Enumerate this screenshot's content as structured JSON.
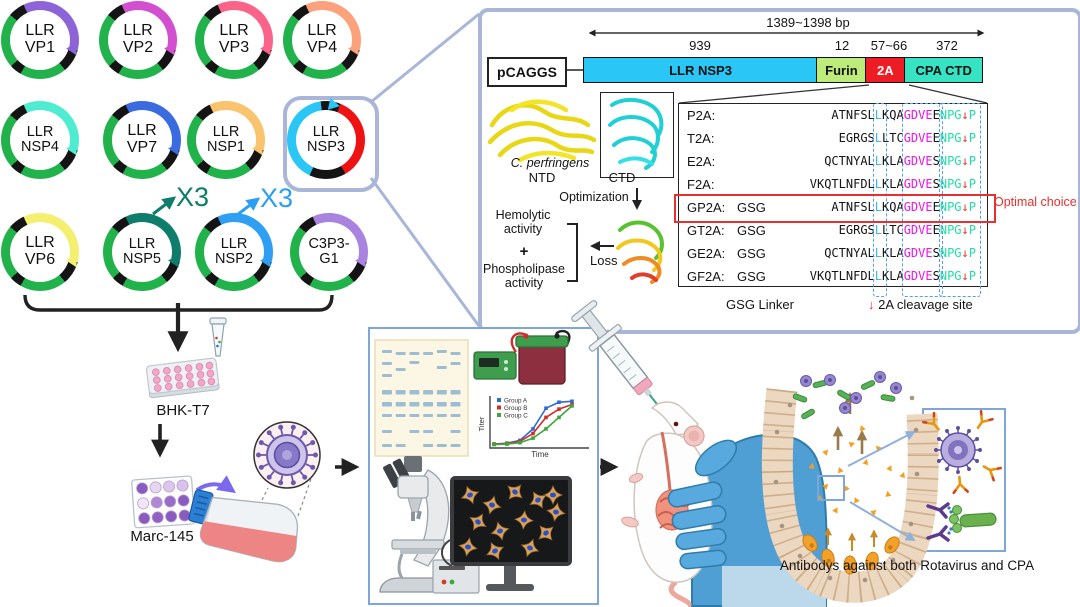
{
  "palette": {
    "callout_border": "#a9b6d8",
    "panel_border": "#7ea6d8",
    "plasmid_green": "#22b24c",
    "plasmid_black": "#141414",
    "optimal_red": "#e83030",
    "sequence_colors": {
      "black": "#141414",
      "blue": "#3db7f0",
      "magenta": "#ec13ec",
      "green": "#1fdfa6",
      "red": "#f22b2b"
    }
  },
  "plasmids": [
    {
      "line1": "LLR",
      "line2": "VP1",
      "accent": "#8d64d8"
    },
    {
      "line1": "LLR",
      "line2": "VP2",
      "accent": "#d24fd0"
    },
    {
      "line1": "LLR",
      "line2": "VP3",
      "accent": "#fb6488"
    },
    {
      "line1": "LLR",
      "line2": "VP4",
      "accent": "#fba17b"
    },
    {
      "line1": "LLR",
      "line2": "NSP4",
      "accent": "#50ecd2"
    },
    {
      "line1": "LLR",
      "line2": "VP7",
      "accent": "#3b6be0"
    },
    {
      "line1": "LLR",
      "line2": "NSP1",
      "accent": "#f9c46d"
    },
    {
      "line1": "LLR",
      "line2": "NSP3",
      "accent": "#29c6f6",
      "accent2": "#ee1212",
      "special": true
    },
    {
      "line1": "LLR",
      "line2": "VP6",
      "accent": "#f4ef6e"
    },
    {
      "line1": "LLR",
      "line2": "NSP5",
      "accent": "#0f7d6c"
    },
    {
      "line1": "LLR",
      "line2": "NSP2",
      "accent": "#2e9ff2"
    },
    {
      "line1": "C3P3-",
      "line2": "G1",
      "accent": "#a883e0"
    }
  ],
  "x3_annotations": [
    {
      "label": "X3",
      "color": "#0f7d6c"
    },
    {
      "label": "X3",
      "color": "#2b9ff2"
    }
  ],
  "construct": {
    "vector_label": "pCAGGS",
    "total_span_label": "1389~1398 bp",
    "segments": [
      {
        "label": "LLR NSP3",
        "size_label": "939",
        "color": "#29c6f6",
        "text_color": "#111111"
      },
      {
        "label": "Furin",
        "size_label": "12",
        "color": "#bdec7a",
        "text_color": "#111111"
      },
      {
        "label": "2A",
        "size_label": "57~66",
        "color": "#ee1c25",
        "text_color": "#ffffff"
      },
      {
        "label": "CPA CTD",
        "size_label": "372",
        "color": "#36e4c4",
        "text_color": "#111111"
      }
    ]
  },
  "protein_panel": {
    "organism": "C. perfringens",
    "ntd_label": "NTD",
    "ctd_label": "CTD",
    "optimization_label": "Optimization",
    "loss_label": "Loss",
    "activity1": "Hemolytic activity",
    "plus": "+",
    "activity2": "Phospholipase activity"
  },
  "peptide_table": {
    "rows": [
      {
        "name": "P2A:",
        "linker": "",
        "seq": [
          [
            "ATNFSL",
            "k"
          ],
          [
            "L",
            "b"
          ],
          [
            "KQA",
            "k"
          ],
          [
            "GDVE",
            "m"
          ],
          [
            "E",
            "k"
          ],
          [
            "NPG",
            "g"
          ],
          [
            "↓",
            "r"
          ],
          [
            "P",
            "g"
          ]
        ]
      },
      {
        "name": "T2A:",
        "linker": "",
        "seq": [
          [
            "EGRGS",
            "k"
          ],
          [
            "L",
            "b"
          ],
          [
            "LTC",
            "k"
          ],
          [
            "GDVE",
            "m"
          ],
          [
            "E",
            "k"
          ],
          [
            "NPG",
            "g"
          ],
          [
            "↓",
            "r"
          ],
          [
            "P",
            "g"
          ]
        ]
      },
      {
        "name": "E2A:",
        "linker": "",
        "seq": [
          [
            "QCTNYAL",
            "k"
          ],
          [
            "L",
            "b"
          ],
          [
            "KLA",
            "k"
          ],
          [
            "GDVE",
            "m"
          ],
          [
            "S",
            "k"
          ],
          [
            "NPG",
            "g"
          ],
          [
            "↓",
            "r"
          ],
          [
            "P",
            "g"
          ]
        ]
      },
      {
        "name": "F2A:",
        "linker": "",
        "seq": [
          [
            "VKQTLNFDL",
            "k"
          ],
          [
            "L",
            "b"
          ],
          [
            "KLA",
            "k"
          ],
          [
            "GDVE",
            "m"
          ],
          [
            "S",
            "k"
          ],
          [
            "NPG",
            "g"
          ],
          [
            "↓",
            "r"
          ],
          [
            "P",
            "g"
          ]
        ]
      },
      {
        "name": "GP2A:",
        "linker": "GSG",
        "optimal": true,
        "seq": [
          [
            "ATNFSL",
            "k"
          ],
          [
            "L",
            "b"
          ],
          [
            "KQA",
            "k"
          ],
          [
            "GDVE",
            "m"
          ],
          [
            "E",
            "k"
          ],
          [
            "NPG",
            "g"
          ],
          [
            "↓",
            "r"
          ],
          [
            "P",
            "g"
          ]
        ]
      },
      {
        "name": "GT2A:",
        "linker": "GSG",
        "seq": [
          [
            "EGRGS",
            "k"
          ],
          [
            "L",
            "b"
          ],
          [
            "LTC",
            "k"
          ],
          [
            "GDVE",
            "m"
          ],
          [
            "E",
            "k"
          ],
          [
            "NPG",
            "g"
          ],
          [
            "↓",
            "r"
          ],
          [
            "P",
            "g"
          ]
        ]
      },
      {
        "name": "GE2A:",
        "linker": "GSG",
        "seq": [
          [
            "QCTNYAL",
            "k"
          ],
          [
            "L",
            "b"
          ],
          [
            "KLA",
            "k"
          ],
          [
            "GDVE",
            "m"
          ],
          [
            "S",
            "k"
          ],
          [
            "NPG",
            "g"
          ],
          [
            "↓",
            "r"
          ],
          [
            "P",
            "g"
          ]
        ]
      },
      {
        "name": "GF2A:",
        "linker": "GSG",
        "seq": [
          [
            "VKQTLNFDL",
            "k"
          ],
          [
            "L",
            "b"
          ],
          [
            "KLA",
            "k"
          ],
          [
            "GDVE",
            "m"
          ],
          [
            "S",
            "k"
          ],
          [
            "NPG",
            "g"
          ],
          [
            "↓",
            "r"
          ],
          [
            "P",
            "g"
          ]
        ]
      }
    ],
    "footer_left": "GSG Linker",
    "footer_right_arrow": "↓",
    "footer_right": " 2A cleavage site",
    "optimal_label": "Optimal choice"
  },
  "workflow": {
    "cell_line_1": "BHK-T7",
    "cell_line_2": "Marc-145",
    "caption": "Antibodys against both Rotavirus and CPA"
  },
  "middle_panel": {
    "growth_chart": {
      "type": "line",
      "x": [
        0,
        1,
        2,
        3,
        4,
        5,
        6
      ],
      "series": [
        {
          "name": "Group A",
          "color": "#2b6cd4",
          "values": [
            0.02,
            0.04,
            0.1,
            0.35,
            0.8,
            0.93,
            0.95
          ]
        },
        {
          "name": "Group B",
          "color": "#d42b2b",
          "values": [
            0.02,
            0.03,
            0.08,
            0.25,
            0.6,
            0.78,
            0.88
          ]
        },
        {
          "name": "Group C",
          "color": "#3aa83a",
          "values": [
            0.01,
            0.02,
            0.05,
            0.15,
            0.35,
            0.6,
            0.85
          ]
        }
      ],
      "xlabel": "Time",
      "ylabel": "Titer",
      "ylim": [
        0,
        1
      ],
      "legend_position": "top-left",
      "grid": false
    }
  },
  "illustrations": [
    "microtube",
    "well-plate-24",
    "well-plate-12",
    "culture-flask",
    "rotavirus-particle",
    "gel-lanes",
    "electrophoresis-tank",
    "growth-curve-chart",
    "microscope",
    "monitor-with-cells",
    "camera-controller",
    "syringe",
    "mouse-oral-gavage",
    "gloved-hand",
    "intestine-crypt",
    "bacteria",
    "virus-particles",
    "antibody",
    "cpa-toxin"
  ]
}
